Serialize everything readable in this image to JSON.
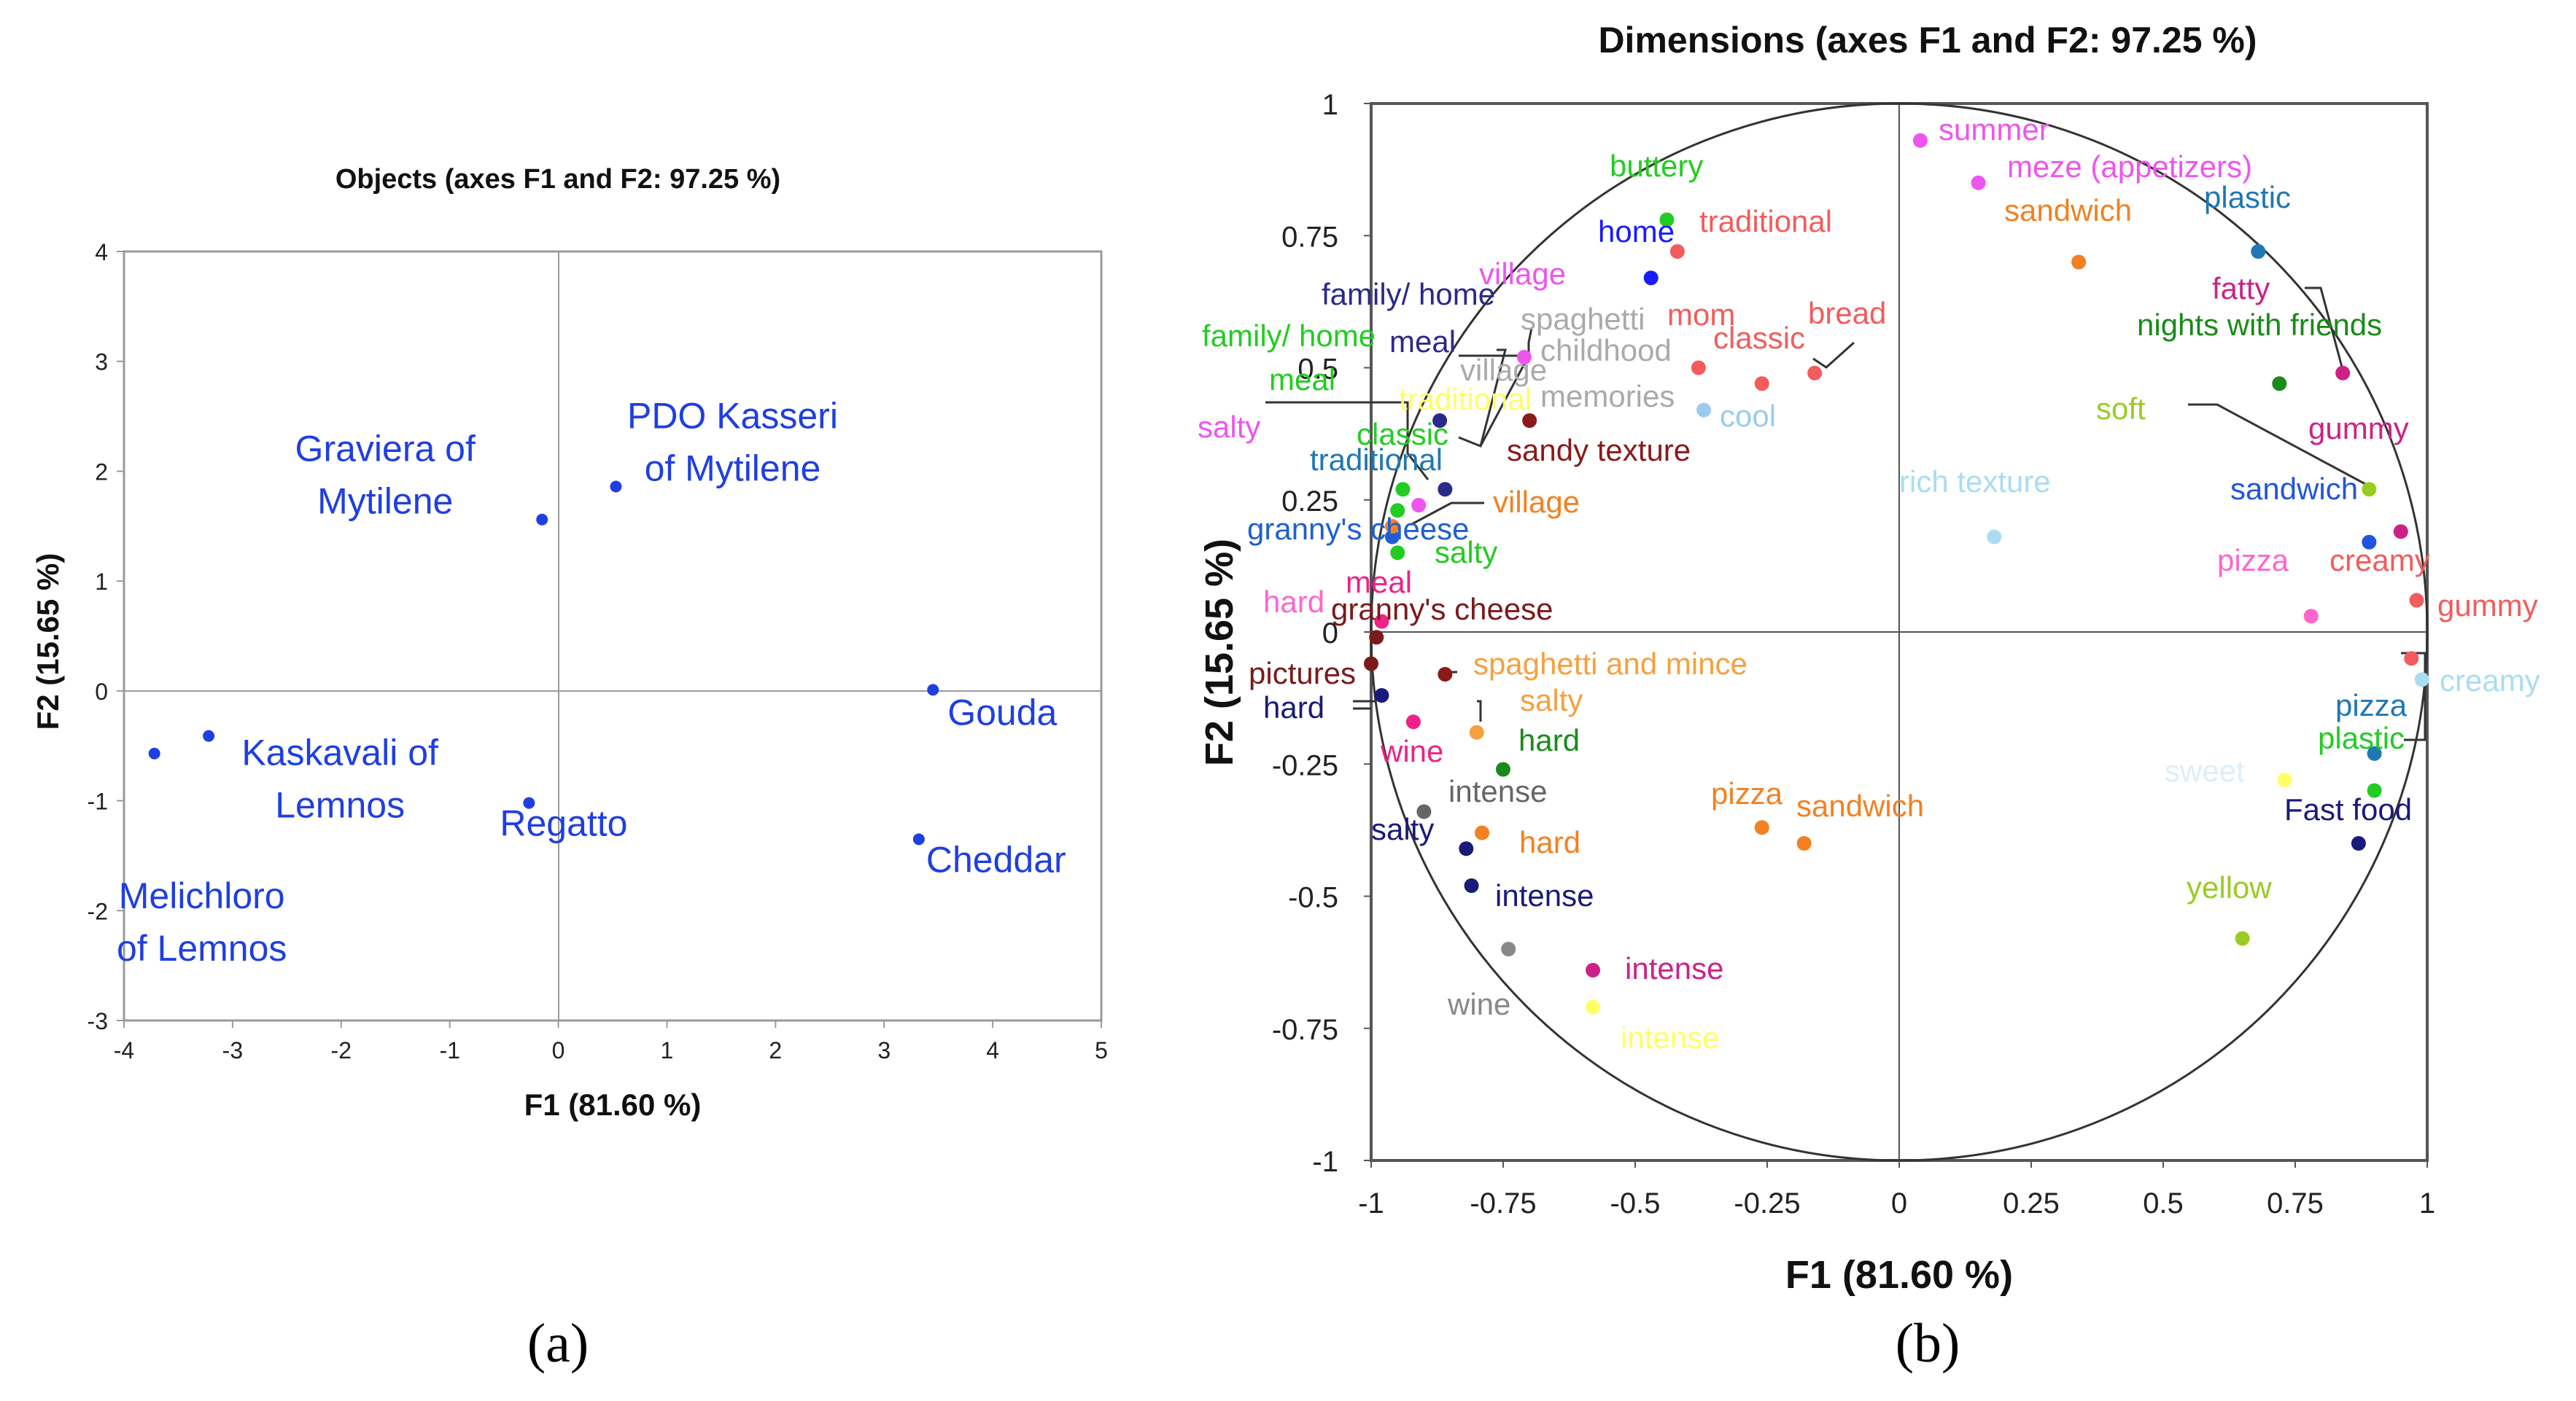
{
  "chart_data": [
    {
      "type": "scatter",
      "panel_label": "(a)",
      "title": "Objects (axes F1 and F2: 97.25 %)",
      "xlabel": "F1 (81.60 %)",
      "ylabel": "F2 (15.65 %)",
      "xlim": [
        -4,
        5
      ],
      "ylim": [
        -3,
        4
      ],
      "xticks": [
        "-4",
        "-3",
        "-2",
        "-1",
        "0",
        "1",
        "2",
        "3",
        "4",
        "5"
      ],
      "yticks": [
        "-3",
        "-2",
        "-1",
        "0",
        "1",
        "2",
        "3",
        "4"
      ],
      "point_color": "#1f3fe0",
      "points": [
        {
          "x": -0.15,
          "y": 1.56,
          "label": [
            "Graviera of",
            "Mytilene"
          ]
        },
        {
          "x": 0.53,
          "y": 1.86,
          "label": [
            "PDO Kasseri",
            "of Mytilene"
          ]
        },
        {
          "x": -3.22,
          "y": -0.41,
          "label": [
            "Kaskavali of",
            "Lemnos"
          ]
        },
        {
          "x": -3.72,
          "y": -0.57,
          "label": [
            "Melichloro",
            "of Lemnos"
          ]
        },
        {
          "x": -0.27,
          "y": -1.02,
          "label": [
            "Regatto"
          ]
        },
        {
          "x": 3.45,
          "y": 0.01,
          "label": [
            "Gouda"
          ]
        },
        {
          "x": 3.32,
          "y": -1.35,
          "label": [
            "Cheddar"
          ]
        }
      ]
    },
    {
      "type": "scatter",
      "panel_label": "(b)",
      "title": "Dimensions (axes F1 and F2: 97.25 %)",
      "xlabel": "F1 (81.60 %)",
      "ylabel": "F2 (15.65 %)",
      "xlim": [
        -1,
        1
      ],
      "ylim": [
        -1,
        1
      ],
      "xticks": [
        "-1",
        "-0.75",
        "-0.5",
        "-0.25",
        "0",
        "0.25",
        "0.5",
        "0.75",
        "1"
      ],
      "yticks": [
        "-1",
        "-0.75",
        "-0.5",
        "-0.25",
        "0",
        "0.25",
        "0.5",
        "0.75",
        "1"
      ],
      "points": [
        {
          "x": 0.04,
          "y": 0.93,
          "label": "summer",
          "color": "#ee55ee"
        },
        {
          "x": 0.15,
          "y": 0.85,
          "label": "meze (appetizers)",
          "color": "#ee55ee"
        },
        {
          "x": 0.34,
          "y": 0.7,
          "label": "sandwich",
          "color": "#f28122"
        },
        {
          "x": 0.68,
          "y": 0.72,
          "label": "plastic",
          "color": "#1f77b4"
        },
        {
          "x": -0.44,
          "y": 0.78,
          "label": "buttery",
          "color": "#22cc22"
        },
        {
          "x": -0.42,
          "y": 0.72,
          "label": "traditional",
          "color": "#f25c5c"
        },
        {
          "x": -0.47,
          "y": 0.67,
          "label": "home",
          "color": "#1a1aff"
        },
        {
          "x": -0.26,
          "y": 0.47,
          "label": "classic",
          "color": "#f25c5c"
        },
        {
          "x": -0.16,
          "y": 0.49,
          "label": "bread",
          "color": "#f25c5c"
        },
        {
          "x": -0.38,
          "y": 0.5,
          "label": "mom",
          "color": "#f25c5c"
        },
        {
          "x": -0.37,
          "y": 0.42,
          "label": "cool",
          "color": "#99ccee"
        },
        {
          "x": -0.7,
          "y": 0.4,
          "label": "sandy texture",
          "color": "#8b1a1a"
        },
        {
          "x": 0.72,
          "y": 0.47,
          "label": "nights with friends",
          "color": "#1a8a1a"
        },
        {
          "x": 0.84,
          "y": 0.49,
          "label": "fatty",
          "color": "#cc2288"
        },
        {
          "x": 0.18,
          "y": 0.18,
          "label": "rich texture",
          "color": "#aaddf0"
        },
        {
          "x": 0.89,
          "y": 0.27,
          "label": "soft",
          "color": "#99cc22"
        },
        {
          "x": 0.95,
          "y": 0.19,
          "label": "gummy",
          "color": "#cc2288"
        },
        {
          "x": 0.89,
          "y": 0.17,
          "label": "sandwich",
          "color": "#2255dd"
        },
        {
          "x": 0.78,
          "y": 0.03,
          "label": "pizza",
          "color": "#ff66cc"
        },
        {
          "x": 0.98,
          "y": 0.06,
          "label": "creamy",
          "color": "#f25c5c"
        },
        {
          "x": 0.97,
          "y": -0.05,
          "label": "gummy",
          "color": "#f25c5c"
        },
        {
          "x": 0.99,
          "y": -0.09,
          "label": "creamy",
          "color": "#aaddf0"
        },
        {
          "x": 0.9,
          "y": -0.23,
          "label": "pizza",
          "color": "#1f77b4"
        },
        {
          "x": 0.9,
          "y": -0.3,
          "label": "plastic",
          "color": "#22cc22"
        },
        {
          "x": 0.73,
          "y": -0.28,
          "label": "sweet",
          "color": "#ffff66"
        },
        {
          "x": 0.87,
          "y": -0.4,
          "label": "Fast food",
          "color": "#1a1a7a"
        },
        {
          "x": 0.65,
          "y": -0.58,
          "label": "yellow",
          "color": "#99cc22"
        },
        {
          "x": -0.87,
          "y": 0.4,
          "label": "meal",
          "color": "#2a2a8a"
        },
        {
          "x": -0.71,
          "y": 0.52,
          "label": "village",
          "color": "#ee55ee"
        },
        {
          "x": -0.86,
          "y": 0.27,
          "label": "family/ home",
          "color": "#2a2a8a"
        },
        {
          "x": -0.94,
          "y": 0.27,
          "label": "classic",
          "color": "#22cc22"
        },
        {
          "x": -0.95,
          "y": 0.23,
          "label": "meal",
          "color": "#22cc22"
        },
        {
          "x": -0.91,
          "y": 0.24,
          "label": "salty",
          "color": "#ee55ee"
        },
        {
          "x": -0.96,
          "y": 0.18,
          "label": "granny's cheese",
          "color": "#1f5fd0"
        },
        {
          "x": -0.95,
          "y": 0.15,
          "label": "salty",
          "color": "#22cc22"
        },
        {
          "x": -0.96,
          "y": 0.2,
          "label": "village",
          "color": "#f28122"
        },
        {
          "x": -0.98,
          "y": 0.02,
          "label": "meal",
          "color": "#ee2288"
        },
        {
          "x": -0.99,
          "y": -0.01,
          "label": "granny's cheese",
          "color": "#7a1a1a"
        },
        {
          "x": -1.0,
          "y": -0.06,
          "label": "pictures",
          "color": "#7a1a1a"
        },
        {
          "x": -0.98,
          "y": -0.12,
          "label": "hard",
          "color": "#1a1a7a"
        },
        {
          "x": -0.86,
          "y": -0.08,
          "label": "spaghetti and mince",
          "color": "#8b1a1a"
        },
        {
          "x": -0.8,
          "y": -0.19,
          "label": "salty",
          "color": "#f5a040"
        },
        {
          "x": -0.92,
          "y": -0.17,
          "label": "wine",
          "color": "#ee2288"
        },
        {
          "x": -0.75,
          "y": -0.26,
          "label": "hard",
          "color": "#1a8a1a"
        },
        {
          "x": -0.9,
          "y": -0.34,
          "label": "intense",
          "color": "#666666"
        },
        {
          "x": -0.82,
          "y": -0.41,
          "label": "salty",
          "color": "#1a1a7a"
        },
        {
          "x": -0.79,
          "y": -0.38,
          "label": "hard",
          "color": "#f28122"
        },
        {
          "x": -0.81,
          "y": -0.48,
          "label": "intense",
          "color": "#1a1a7a"
        },
        {
          "x": -0.74,
          "y": -0.6,
          "label": "wine",
          "color": "#888888"
        },
        {
          "x": -0.58,
          "y": -0.64,
          "label": "intense",
          "color": "#cc2288"
        },
        {
          "x": -0.58,
          "y": -0.71,
          "label": "intense",
          "color": "#ffff66"
        },
        {
          "x": -0.26,
          "y": -0.37,
          "label": "pizza",
          "color": "#f28122"
        },
        {
          "x": -0.18,
          "y": -0.4,
          "label": "sandwich",
          "color": "#f28122"
        }
      ],
      "extra_labels": [
        {
          "label": "spaghetti",
          "color": "#aaaaaa"
        },
        {
          "label": "childhood",
          "color": "#aaaaaa"
        },
        {
          "label": "memories",
          "color": "#aaaaaa"
        },
        {
          "label": "village",
          "color": "#aaaaaa"
        },
        {
          "label": "traditional",
          "color": "#ffff66"
        },
        {
          "label": "village",
          "color": "#ee55ee"
        },
        {
          "label": "family/ home",
          "color": "#22cc22"
        },
        {
          "label": "traditional",
          "color": "#1f77b4"
        },
        {
          "label": "meal",
          "color": "#22cc22"
        },
        {
          "label": "salty",
          "color": "#ee55ee"
        },
        {
          "label": "hard",
          "color": "#ff66cc"
        }
      ]
    }
  ]
}
